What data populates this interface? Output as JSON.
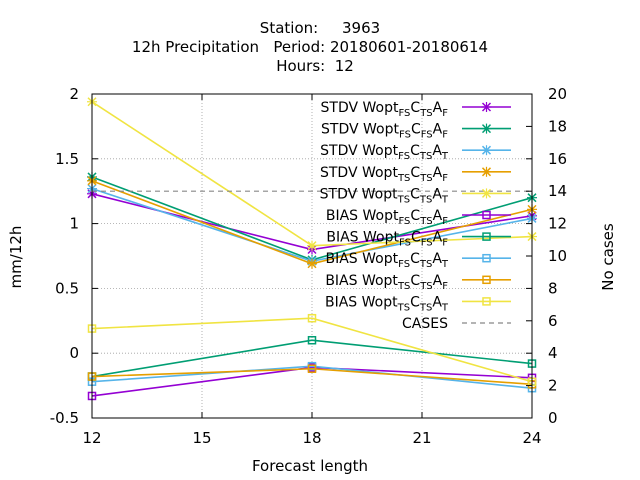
{
  "header": {
    "line1": "Station:     3963",
    "line2": "12h Precipitation   Period: 20180601-20180614",
    "line3": "Hours:  12"
  },
  "chart_data": {
    "type": "line",
    "xlabel": "Forecast length",
    "ylabel": "mm/12h",
    "y2label": "No cases",
    "xlim": [
      12,
      24
    ],
    "ylim": [
      -0.5,
      2
    ],
    "y2lim": [
      0,
      20
    ],
    "xticks": [
      "12",
      "15",
      "18",
      "21",
      "24"
    ],
    "yticks": [
      "-0.5",
      "0",
      "0.5",
      "1",
      "1.5",
      "2"
    ],
    "y2ticks": [
      "0",
      "2",
      "4",
      "6",
      "8",
      "10",
      "12",
      "14",
      "16",
      "18",
      "20"
    ],
    "grid": true,
    "legend_position": "top-right",
    "x": [
      12,
      18,
      24
    ],
    "series": [
      {
        "name": "STDV Wopt_FS C_TS A_F",
        "name_parts": [
          {
            "t": "STDV Wopt"
          },
          {
            "t": "FS",
            "s": 1
          },
          {
            "t": "C"
          },
          {
            "t": "TS",
            "s": 1
          },
          {
            "t": "A"
          },
          {
            "t": "F",
            "s": 1
          }
        ],
        "values": [
          1.23,
          0.8,
          1.06
        ],
        "color": "#9400d3",
        "marker": "x",
        "axis": "y"
      },
      {
        "name": "STDV Wopt_FS C_FS A_F",
        "name_parts": [
          {
            "t": "STDV Wopt"
          },
          {
            "t": "FS",
            "s": 1
          },
          {
            "t": "C"
          },
          {
            "t": "FS",
            "s": 1
          },
          {
            "t": "A"
          },
          {
            "t": "F",
            "s": 1
          }
        ],
        "values": [
          1.36,
          0.72,
          1.2
        ],
        "color": "#009e73",
        "marker": "x",
        "axis": "y"
      },
      {
        "name": "STDV Wopt_FS C_TS A_T",
        "name_parts": [
          {
            "t": "STDV Wopt"
          },
          {
            "t": "FS",
            "s": 1
          },
          {
            "t": "C"
          },
          {
            "t": "TS",
            "s": 1
          },
          {
            "t": "A"
          },
          {
            "t": "T",
            "s": 1
          }
        ],
        "values": [
          1.27,
          0.71,
          1.04
        ],
        "color": "#56b4e9",
        "marker": "x",
        "axis": "y"
      },
      {
        "name": "STDV Wopt_TS C_TS A_F",
        "name_parts": [
          {
            "t": "STDV Wopt"
          },
          {
            "t": "TS",
            "s": 1
          },
          {
            "t": "C"
          },
          {
            "t": "TS",
            "s": 1
          },
          {
            "t": "A"
          },
          {
            "t": "F",
            "s": 1
          }
        ],
        "values": [
          1.33,
          0.69,
          1.11
        ],
        "color": "#e69f00",
        "marker": "x",
        "axis": "y"
      },
      {
        "name": "STDV Wopt_TS C_TS A_T",
        "name_parts": [
          {
            "t": "STDV Wopt"
          },
          {
            "t": "TS",
            "s": 1
          },
          {
            "t": "C"
          },
          {
            "t": "TS",
            "s": 1
          },
          {
            "t": "A"
          },
          {
            "t": "T",
            "s": 1
          }
        ],
        "values": [
          1.94,
          0.83,
          0.9
        ],
        "color": "#f0e442",
        "marker": "x",
        "axis": "y"
      },
      {
        "name": "BIAS Wopt_FS C_TS A_F",
        "name_parts": [
          {
            "t": "BIAS Wopt"
          },
          {
            "t": "FS",
            "s": 1
          },
          {
            "t": "C"
          },
          {
            "t": "TS",
            "s": 1
          },
          {
            "t": "A"
          },
          {
            "t": "F",
            "s": 1
          }
        ],
        "values": [
          -0.33,
          -0.11,
          -0.19
        ],
        "color": "#9400d3",
        "marker": "square",
        "axis": "y"
      },
      {
        "name": "BIAS Wopt_FS C_FS A_F",
        "name_parts": [
          {
            "t": "BIAS Wopt"
          },
          {
            "t": "FS",
            "s": 1
          },
          {
            "t": "C"
          },
          {
            "t": "FS",
            "s": 1
          },
          {
            "t": "A"
          },
          {
            "t": "F",
            "s": 1
          }
        ],
        "values": [
          -0.18,
          0.1,
          -0.08
        ],
        "color": "#009e73",
        "marker": "square",
        "axis": "y"
      },
      {
        "name": "BIAS Wopt_FS C_TS A_T",
        "name_parts": [
          {
            "t": "BIAS Wopt"
          },
          {
            "t": "FS",
            "s": 1
          },
          {
            "t": "C"
          },
          {
            "t": "TS",
            "s": 1
          },
          {
            "t": "A"
          },
          {
            "t": "T",
            "s": 1
          }
        ],
        "values": [
          -0.22,
          -0.1,
          -0.27
        ],
        "color": "#56b4e9",
        "marker": "square",
        "axis": "y"
      },
      {
        "name": "BIAS Wopt_TS C_TS A_F",
        "name_parts": [
          {
            "t": "BIAS Wopt"
          },
          {
            "t": "TS",
            "s": 1
          },
          {
            "t": "C"
          },
          {
            "t": "TS",
            "s": 1
          },
          {
            "t": "A"
          },
          {
            "t": "F",
            "s": 1
          }
        ],
        "values": [
          -0.18,
          -0.12,
          -0.24
        ],
        "color": "#e69f00",
        "marker": "square",
        "axis": "y"
      },
      {
        "name": "BIAS Wopt_TS C_TS A_T",
        "name_parts": [
          {
            "t": "BIAS Wopt"
          },
          {
            "t": "TS",
            "s": 1
          },
          {
            "t": "C"
          },
          {
            "t": "TS",
            "s": 1
          },
          {
            "t": "A"
          },
          {
            "t": "T",
            "s": 1
          }
        ],
        "values": [
          0.19,
          0.27,
          -0.22
        ],
        "color": "#f0e442",
        "marker": "square",
        "axis": "y"
      },
      {
        "name": "CASES",
        "name_parts": [
          {
            "t": "CASES"
          }
        ],
        "values": [
          14,
          14,
          14
        ],
        "color": "#888888",
        "marker": "none",
        "dashed": true,
        "axis": "y2"
      }
    ]
  }
}
